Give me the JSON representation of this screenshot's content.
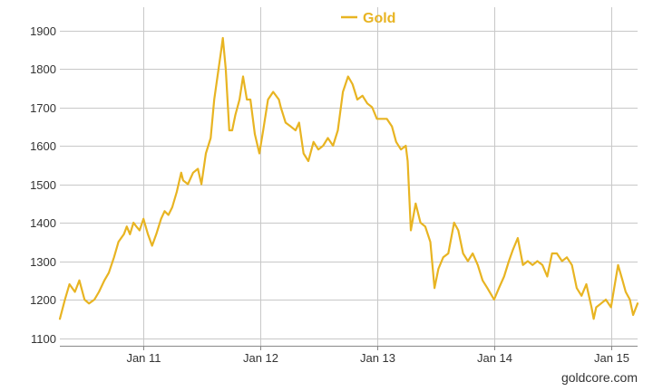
{
  "chart_data": {
    "type": "line",
    "title": "",
    "xlabel": "",
    "ylabel": "",
    "ylim": [
      1080,
      1960
    ],
    "xlim": [
      "2010-04-15",
      "2015-03-24"
    ],
    "grid": true,
    "legend_position": "top-center",
    "source": "goldcore.com",
    "line_color": "#E8B422",
    "y_ticks": [
      1100,
      1200,
      1300,
      1400,
      1500,
      1600,
      1700,
      1800,
      1900
    ],
    "y_tick_labels": [
      "1100",
      "1200",
      "1300",
      "1400",
      "1500",
      "1600",
      "1700",
      "1800",
      "1900"
    ],
    "x_ticks": [
      "2011-01-01",
      "2012-01-01",
      "2013-01-01",
      "2014-01-01",
      "2015-01-01"
    ],
    "x_tick_labels": [
      "Jan 11",
      "Jan 12",
      "Jan 13",
      "Jan 14",
      "Jan 15"
    ],
    "series": [
      {
        "name": "Gold",
        "x": [
          "2010-04-15",
          "2010-05-01",
          "2010-05-15",
          "2010-06-01",
          "2010-06-15",
          "2010-07-01",
          "2010-07-15",
          "2010-08-01",
          "2010-08-15",
          "2010-09-01",
          "2010-09-15",
          "2010-10-01",
          "2010-10-15",
          "2010-11-01",
          "2010-11-10",
          "2010-11-20",
          "2010-12-01",
          "2010-12-10",
          "2010-12-20",
          "2011-01-01",
          "2011-01-15",
          "2011-01-28",
          "2011-02-10",
          "2011-02-25",
          "2011-03-08",
          "2011-03-20",
          "2011-04-01",
          "2011-04-15",
          "2011-04-29",
          "2011-05-05",
          "2011-05-20",
          "2011-06-05",
          "2011-06-20",
          "2011-07-01",
          "2011-07-15",
          "2011-07-30",
          "2011-08-10",
          "2011-08-22",
          "2011-09-01",
          "2011-09-06",
          "2011-09-15",
          "2011-09-26",
          "2011-10-05",
          "2011-10-15",
          "2011-10-28",
          "2011-11-08",
          "2011-11-20",
          "2011-12-01",
          "2011-12-15",
          "2011-12-29",
          "2012-01-10",
          "2012-01-25",
          "2012-02-10",
          "2012-02-28",
          "2012-03-05",
          "2012-03-20",
          "2012-04-05",
          "2012-04-20",
          "2012-05-01",
          "2012-05-15",
          "2012-05-30",
          "2012-06-15",
          "2012-06-30",
          "2012-07-15",
          "2012-07-30",
          "2012-08-15",
          "2012-08-30",
          "2012-09-15",
          "2012-10-01",
          "2012-10-15",
          "2012-10-30",
          "2012-11-15",
          "2012-11-30",
          "2012-12-15",
          "2012-12-30",
          "2013-01-15",
          "2013-01-30",
          "2013-02-15",
          "2013-02-28",
          "2013-03-15",
          "2013-03-30",
          "2013-04-05",
          "2013-04-15",
          "2013-04-30",
          "2013-05-15",
          "2013-05-30",
          "2013-06-15",
          "2013-06-28",
          "2013-07-10",
          "2013-07-25",
          "2013-08-10",
          "2013-08-28",
          "2013-09-10",
          "2013-09-25",
          "2013-10-10",
          "2013-10-25",
          "2013-11-10",
          "2013-11-25",
          "2013-12-10",
          "2013-12-31",
          "2014-01-15",
          "2014-01-31",
          "2014-02-15",
          "2014-02-28",
          "2014-03-15",
          "2014-03-31",
          "2014-04-15",
          "2014-04-30",
          "2014-05-15",
          "2014-05-31",
          "2014-06-15",
          "2014-06-30",
          "2014-07-15",
          "2014-07-31",
          "2014-08-15",
          "2014-08-31",
          "2014-09-15",
          "2014-09-30",
          "2014-10-15",
          "2014-10-31",
          "2014-11-07",
          "2014-11-15",
          "2014-11-30",
          "2014-12-15",
          "2014-12-31",
          "2015-01-10",
          "2015-01-22",
          "2015-02-05",
          "2015-02-15",
          "2015-02-28",
          "2015-03-10",
          "2015-03-24"
        ],
        "y": [
          1150,
          1200,
          1240,
          1220,
          1250,
          1200,
          1190,
          1200,
          1220,
          1250,
          1270,
          1310,
          1350,
          1370,
          1390,
          1370,
          1400,
          1390,
          1380,
          1410,
          1370,
          1340,
          1370,
          1410,
          1430,
          1420,
          1440,
          1480,
          1530,
          1510,
          1500,
          1530,
          1540,
          1500,
          1580,
          1620,
          1720,
          1790,
          1850,
          1880,
          1800,
          1640,
          1640,
          1680,
          1720,
          1780,
          1720,
          1720,
          1630,
          1580,
          1640,
          1720,
          1740,
          1720,
          1700,
          1660,
          1650,
          1640,
          1660,
          1580,
          1560,
          1610,
          1590,
          1600,
          1620,
          1600,
          1640,
          1740,
          1780,
          1760,
          1720,
          1730,
          1710,
          1700,
          1670,
          1670,
          1670,
          1650,
          1610,
          1590,
          1600,
          1560,
          1380,
          1450,
          1400,
          1390,
          1350,
          1230,
          1280,
          1310,
          1320,
          1400,
          1380,
          1320,
          1300,
          1320,
          1290,
          1250,
          1230,
          1200,
          1230,
          1260,
          1300,
          1330,
          1360,
          1290,
          1300,
          1290,
          1300,
          1290,
          1260,
          1320,
          1320,
          1300,
          1310,
          1290,
          1230,
          1210,
          1240,
          1180,
          1150,
          1180,
          1190,
          1200,
          1180,
          1230,
          1290,
          1250,
          1220,
          1200,
          1160,
          1190
        ]
      }
    ]
  }
}
